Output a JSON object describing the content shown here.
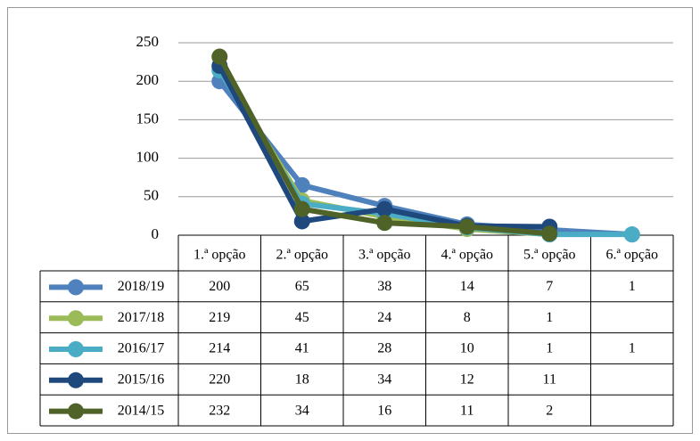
{
  "chart_data": {
    "type": "line",
    "categories": [
      "1.ª opção",
      "2.ª opção",
      "3.ª opção",
      "4.ª opção",
      "5.ª opção",
      "6.ª opção"
    ],
    "series": [
      {
        "name": "2018/19",
        "color": "#4f81bd",
        "values": [
          200,
          65,
          38,
          14,
          7,
          1
        ]
      },
      {
        "name": "2017/18",
        "color": "#9bbb59",
        "values": [
          219,
          45,
          24,
          8,
          1,
          null
        ]
      },
      {
        "name": "2016/17",
        "color": "#4bacc6",
        "values": [
          214,
          41,
          28,
          10,
          1,
          1
        ]
      },
      {
        "name": "2015/16",
        "color": "#1f497d",
        "values": [
          220,
          18,
          34,
          12,
          11,
          null
        ]
      },
      {
        "name": "2014/15",
        "color": "#4f6228",
        "values": [
          232,
          34,
          16,
          11,
          2,
          null
        ]
      }
    ],
    "ylim": [
      0,
      250
    ],
    "yticks": [
      0,
      50,
      100,
      150,
      200,
      250
    ],
    "grid": true,
    "data_table": true
  }
}
